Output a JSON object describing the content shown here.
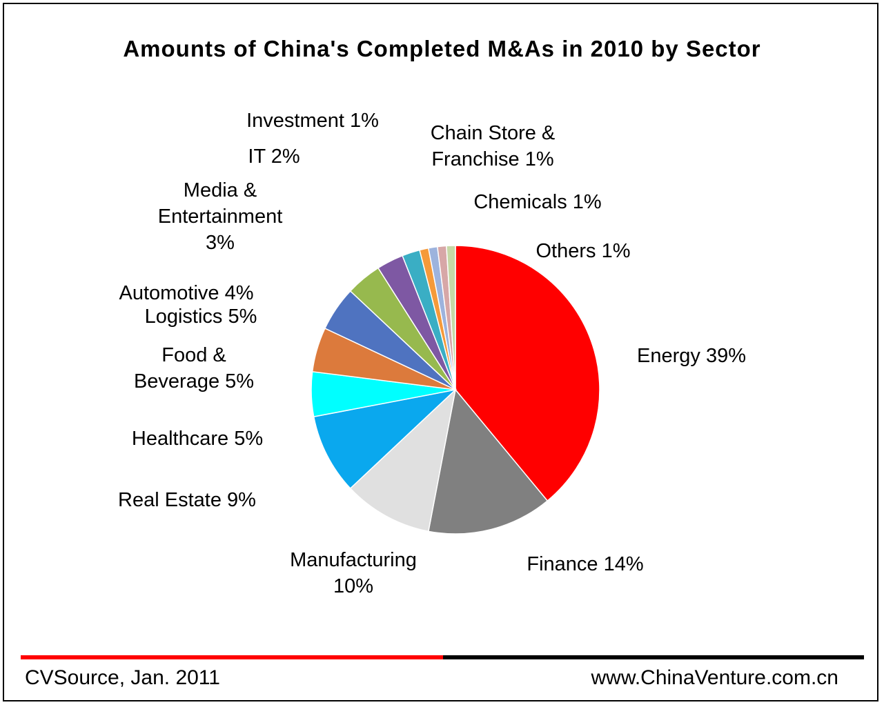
{
  "chart_data": {
    "type": "pie",
    "title": "Amounts of China's Completed M&As in 2010 by Sector",
    "slices": [
      {
        "label": "Energy 39%",
        "value": 39,
        "color": "#ff0000"
      },
      {
        "label": "Finance 14%",
        "value": 14,
        "color": "#808080"
      },
      {
        "label": [
          "Manufacturing",
          "10%"
        ],
        "value": 10,
        "color": "#e0e0e0"
      },
      {
        "label": "Real Estate 9%",
        "value": 9,
        "color": "#0aa8ee"
      },
      {
        "label": "Healthcare 5%",
        "value": 5,
        "color": "#00ffff"
      },
      {
        "label": [
          "Food &",
          "Beverage 5%"
        ],
        "value": 5,
        "color": "#dc7a3c"
      },
      {
        "label": "Logistics 5%",
        "value": 5,
        "color": "#4f73c0"
      },
      {
        "label": "Automotive 4%",
        "value": 4,
        "color": "#97b94e"
      },
      {
        "label": [
          "Media &",
          "Entertainment",
          "3%"
        ],
        "value": 3,
        "color": "#7e58a3"
      },
      {
        "label": "IT 2%",
        "value": 2,
        "color": "#3aaec4"
      },
      {
        "label": "Investment 1%",
        "value": 1,
        "color": "#f59a3a"
      },
      {
        "label": [
          "Chain Store &",
          "Franchise 1%"
        ],
        "value": 1,
        "color": "#9db3dd"
      },
      {
        "label": "Chemicals 1%",
        "value": 1,
        "color": "#d7a7a7"
      },
      {
        "label": "Others 1%",
        "value": 1,
        "color": "#c6d8a6"
      }
    ],
    "direction": "clockwise",
    "start_angle_deg": 0
  },
  "footer": {
    "source": "CVSource, Jan. 2011",
    "url": "www.ChinaVenture.com.cn"
  }
}
